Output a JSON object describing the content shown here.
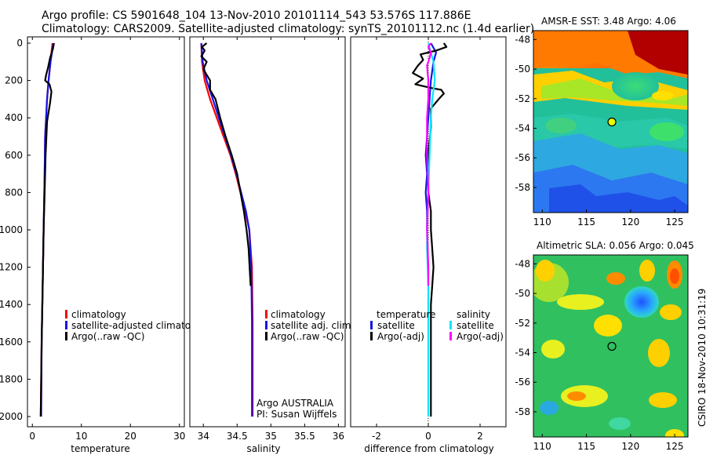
{
  "header": {
    "title_line1": "Argo profile: CS 5901648_104 13-Nov-2010 20101114_543 53.576S 117.886E",
    "title_line2": "Climatology: CARS2009. Satellite-adjusted climatology: synTS_20101112.nc (1.4d earlier)"
  },
  "maps": {
    "sst_title": "AMSR-E SST: 3.48 Argo: 4.06",
    "sla_title": "Altimetric SLA: 0.056 Argo: 0.045",
    "x_ticks": [
      "110",
      "115",
      "120",
      "125"
    ],
    "y_ticks": [
      "-48",
      "-50",
      "-52",
      "-54",
      "-56",
      "-58"
    ],
    "float_lon": 117.886,
    "float_lat": -53.576
  },
  "footer": {
    "timestamp": "CSIRO 18-Nov-2010 10:31:19"
  },
  "colors": {
    "climatology": "#ff0000",
    "satellite": "#1414e6",
    "argo": "#000000",
    "satellite_salinity": "#00e6ff",
    "argo_salinity": "#ff00ff"
  },
  "chart_data": [
    {
      "type": "line",
      "name": "temperature-panel",
      "xlabel": "temperature",
      "ylabel": "",
      "xlim": [
        -1,
        31
      ],
      "ylim": [
        2060,
        -5
      ],
      "x_ticks": [
        "0",
        "10",
        "20",
        "30"
      ],
      "y_ticks": [
        "0",
        "200",
        "400",
        "600",
        "800",
        "1000",
        "1200",
        "1400",
        "1600",
        "1800",
        "2000"
      ],
      "legend": [
        "climatology",
        "satellite-adjusted climatology",
        "Argo(..raw -QC)"
      ],
      "legend_position": "lower-middle",
      "series": [
        {
          "name": "climatology",
          "color": "climatology",
          "points": [
            [
              4.1,
              0
            ],
            [
              3.9,
              50
            ],
            [
              3.7,
              100
            ],
            [
              3.3,
              200
            ],
            [
              3.0,
              300
            ],
            [
              2.8,
              400
            ],
            [
              2.6,
              500
            ],
            [
              2.5,
              700
            ],
            [
              2.3,
              1000
            ],
            [
              2.1,
              1300
            ],
            [
              1.9,
              1600
            ],
            [
              1.7,
              2000
            ]
          ]
        },
        {
          "name": "satellite-adjusted climatology",
          "color": "satellite",
          "points": [
            [
              4.3,
              0
            ],
            [
              4.0,
              50
            ],
            [
              3.7,
              100
            ],
            [
              3.3,
              200
            ],
            [
              3.0,
              300
            ],
            [
              2.8,
              400
            ],
            [
              2.6,
              500
            ],
            [
              2.5,
              700
            ],
            [
              2.3,
              1000
            ],
            [
              2.1,
              1300
            ],
            [
              1.9,
              1600
            ],
            [
              1.8,
              2000
            ]
          ]
        },
        {
          "name": "Argo(..raw -QC)",
          "color": "argo",
          "points": [
            [
              4.4,
              0
            ],
            [
              4.2,
              30
            ],
            [
              3.6,
              80
            ],
            [
              3.2,
              130
            ],
            [
              2.8,
              170
            ],
            [
              2.6,
              200
            ],
            [
              3.5,
              220
            ],
            [
              3.9,
              260
            ],
            [
              3.6,
              320
            ],
            [
              3.0,
              420
            ],
            [
              2.7,
              600
            ],
            [
              2.5,
              800
            ],
            [
              2.3,
              1000
            ],
            [
              2.1,
              1300
            ],
            [
              1.9,
              1600
            ],
            [
              1.7,
              2000
            ]
          ]
        }
      ]
    },
    {
      "type": "line",
      "name": "salinity-panel",
      "xlabel": "salinity",
      "xlim": [
        33.8,
        36.1
      ],
      "ylim": [
        2060,
        -5
      ],
      "x_ticks": [
        "34",
        "34.5",
        "35",
        "35.5",
        "36"
      ],
      "legend": [
        "climatology",
        "satellite adj. clim.",
        "Argo(..raw -QC)"
      ],
      "legend_position": "lower-middle",
      "annotation": [
        "Argo AUSTRALIA",
        "PI: Susan Wijffels"
      ],
      "series": [
        {
          "name": "climatology",
          "color": "climatology",
          "points": [
            [
              33.97,
              0
            ],
            [
              33.98,
              100
            ],
            [
              34.02,
              200
            ],
            [
              34.1,
              300
            ],
            [
              34.2,
              400
            ],
            [
              34.3,
              500
            ],
            [
              34.4,
              600
            ],
            [
              34.48,
              700
            ],
            [
              34.55,
              800
            ],
            [
              34.62,
              900
            ],
            [
              34.68,
              1000
            ],
            [
              34.72,
              1200
            ],
            [
              34.73,
              1500
            ],
            [
              34.73,
              2000
            ]
          ]
        },
        {
          "name": "satellite adj. clim.",
          "color": "satellite",
          "points": [
            [
              33.97,
              0
            ],
            [
              33.99,
              100
            ],
            [
              34.05,
              200
            ],
            [
              34.14,
              300
            ],
            [
              34.23,
              400
            ],
            [
              34.32,
              500
            ],
            [
              34.41,
              600
            ],
            [
              34.49,
              700
            ],
            [
              34.56,
              800
            ],
            [
              34.63,
              900
            ],
            [
              34.68,
              1000
            ],
            [
              34.71,
              1200
            ],
            [
              34.72,
              1500
            ],
            [
              34.72,
              2000
            ]
          ]
        },
        {
          "name": "Argo(..raw -QC)",
          "color": "argo",
          "points": [
            [
              34.05,
              0
            ],
            [
              33.98,
              20
            ],
            [
              34.02,
              40
            ],
            [
              33.97,
              70
            ],
            [
              34.05,
              100
            ],
            [
              34.0,
              140
            ],
            [
              34.1,
              200
            ],
            [
              34.1,
              250
            ],
            [
              34.18,
              300
            ],
            [
              34.25,
              400
            ],
            [
              34.33,
              500
            ],
            [
              34.42,
              600
            ],
            [
              34.5,
              700
            ],
            [
              34.55,
              800
            ],
            [
              34.6,
              900
            ],
            [
              34.64,
              1000
            ],
            [
              34.67,
              1100
            ],
            [
              34.7,
              1300
            ]
          ]
        }
      ]
    },
    {
      "type": "line",
      "name": "difference-panel",
      "xlabel": "difference from climatology",
      "xlim": [
        -3,
        3
      ],
      "ylim": [
        2060,
        -5
      ],
      "x_ticks": [
        "-2",
        "0",
        "2"
      ],
      "legend_temperature_title": "temperature",
      "legend_salinity_title": "salinity",
      "legend": [
        "satellite",
        "Argo(-adj)",
        "satellite",
        "Argo(-adj)"
      ],
      "legend_position": "lower-middle",
      "series": [
        {
          "name": "temperature satellite",
          "color": "satellite",
          "points": [
            [
              0.1,
              0
            ],
            [
              0.3,
              50
            ],
            [
              0.2,
              100
            ],
            [
              0.1,
              200
            ],
            [
              0.05,
              300
            ],
            [
              0.0,
              400
            ],
            [
              -0.05,
              500
            ],
            [
              -0.1,
              600
            ],
            [
              -0.05,
              700
            ],
            [
              -0.1,
              800
            ],
            [
              -0.05,
              900
            ],
            [
              -0.05,
              1000
            ]
          ]
        },
        {
          "name": "temperature Argo(-adj)",
          "color": "argo",
          "points": [
            [
              0.6,
              0
            ],
            [
              0.7,
              20
            ],
            [
              0.3,
              40
            ],
            [
              -0.3,
              60
            ],
            [
              -0.2,
              90
            ],
            [
              -0.4,
              120
            ],
            [
              -0.6,
              160
            ],
            [
              -0.2,
              190
            ],
            [
              -0.5,
              220
            ],
            [
              0.1,
              240
            ],
            [
              0.5,
              250
            ],
            [
              0.6,
              270
            ],
            [
              0.4,
              300
            ],
            [
              0.1,
              350
            ],
            [
              0.1,
              450
            ],
            [
              0.0,
              600
            ],
            [
              0.0,
              800
            ],
            [
              0.1,
              900
            ],
            [
              0.1,
              1000
            ],
            [
              0.15,
              1100
            ],
            [
              0.2,
              1200
            ],
            [
              0.15,
              1300
            ],
            [
              0.1,
              1400
            ],
            [
              0.1,
              1600
            ],
            [
              0.1,
              2000
            ]
          ]
        },
        {
          "name": "salinity satellite",
          "color": "satellite_salinity",
          "points": [
            [
              0.0,
              0
            ],
            [
              0.1,
              50
            ],
            [
              0.2,
              100
            ],
            [
              0.25,
              200
            ],
            [
              0.15,
              300
            ],
            [
              0.1,
              400
            ],
            [
              0.05,
              600
            ],
            [
              0.0,
              800
            ],
            [
              -0.05,
              1000
            ],
            [
              -0.05,
              1100
            ],
            [
              0.0,
              1300
            ],
            [
              0.0,
              1600
            ],
            [
              0.0,
              2000
            ]
          ]
        },
        {
          "name": "salinity Argo(-adj)",
          "color": "argo_salinity",
          "points": [
            [
              0.1,
              0
            ],
            [
              0.0,
              20
            ],
            [
              0.1,
              50
            ],
            [
              0.05,
              80
            ],
            [
              -0.05,
              120
            ],
            [
              0.0,
              200
            ],
            [
              0.0,
              300
            ],
            [
              -0.05,
              400
            ],
            [
              -0.05,
              600
            ],
            [
              0.0,
              800
            ],
            [
              -0.05,
              1000
            ],
            [
              0.0,
              1200
            ],
            [
              0.0,
              1300
            ]
          ]
        }
      ]
    }
  ]
}
